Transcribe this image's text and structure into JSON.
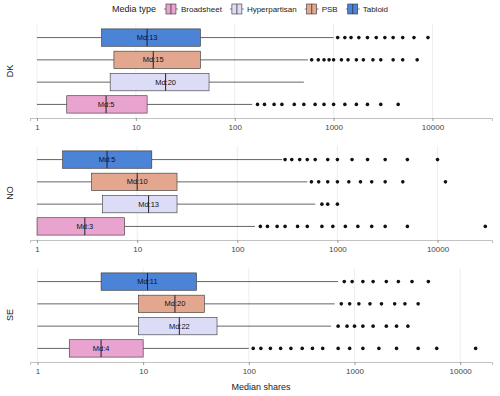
{
  "chart_data": {
    "type": "box",
    "orientation": "horizontal",
    "log": "x",
    "grid": true,
    "legend": "top",
    "legend_title": "Media type",
    "x_label": "Median shares",
    "series": [
      {
        "name": "Broadsheet",
        "color": "#e9a3cf"
      },
      {
        "name": "Hyperpartisan",
        "color": "#dcdcf6"
      },
      {
        "name": "PSB",
        "color": "#e3a68e"
      },
      {
        "name": "Tabloid",
        "color": "#4b83d6"
      }
    ],
    "panels": [
      {
        "title": "DK",
        "xlim": [
          0.85,
          40000
        ],
        "xticks": [
          1,
          10,
          100,
          1000,
          10000
        ],
        "boxes": [
          {
            "whisker_low": 1,
            "q1": 2,
            "median": 5,
            "q3": 13,
            "whisker_high": 150,
            "median_label": "Md:5",
            "outliers": [
              170,
              200,
              250,
              300,
              400,
              500,
              650,
              800,
              1000,
              1300,
              1700,
              2200,
              3000,
              4500
            ]
          },
          {
            "whisker_low": 1,
            "q1": 5.5,
            "median": 20,
            "q3": 55,
            "whisker_high": 500,
            "median_label": "Md:20",
            "outliers": []
          },
          {
            "whisker_low": 1,
            "q1": 6,
            "median": 15,
            "q3": 45,
            "whisker_high": 550,
            "median_label": "Md:15",
            "outliers": [
              600,
              700,
              800,
              900,
              1000,
              1200,
              1400,
              1700,
              2000,
              2500,
              3000,
              4000,
              5000,
              7000
            ]
          },
          {
            "whisker_low": 1,
            "q1": 4.5,
            "median": 13,
            "q3": 45,
            "whisker_high": 1000,
            "median_label": "Md:13",
            "outliers": [
              1100,
              1300,
              1500,
              1800,
              2200,
              2700,
              3300,
              4000,
              5000,
              6500,
              9000
            ]
          }
        ]
      },
      {
        "title": "NO",
        "xlim": [
          0.85,
          35000
        ],
        "xticks": [
          1,
          10,
          100,
          1000,
          10000
        ],
        "boxes": [
          {
            "whisker_low": 1,
            "q1": 1,
            "median": 3,
            "q3": 7.5,
            "whisker_high": 150,
            "median_label": "Md:3",
            "outliers": [
              170,
              200,
              250,
              300,
              400,
              500,
              700,
              900,
              1200,
              1600,
              2200,
              3000,
              5000,
              30000
            ]
          },
          {
            "whisker_low": 1,
            "q1": 4.5,
            "median": 13,
            "q3": 25,
            "whisker_high": 600,
            "median_label": "Md:13",
            "outliers": [
              700,
              800,
              1000
            ]
          },
          {
            "whisker_low": 1,
            "q1": 3.5,
            "median": 10,
            "q3": 25,
            "whisker_high": 500,
            "median_label": "Md:10",
            "outliers": [
              550,
              650,
              800,
              1000,
              1300,
              1700,
              2200,
              3000,
              4500,
              12000
            ]
          },
          {
            "whisker_low": 1,
            "q1": 1.8,
            "median": 5,
            "q3": 14,
            "whisker_high": 280,
            "median_label": "Md:5",
            "outliers": [
              300,
              350,
              420,
              500,
              600,
              800,
              1000,
              1400,
              2000,
              3000,
              5000,
              10000
            ]
          }
        ]
      },
      {
        "title": "SE",
        "xlim": [
          0.85,
          20000
        ],
        "xticks": [
          1,
          10,
          100,
          1000,
          10000
        ],
        "boxes": [
          {
            "whisker_low": 1,
            "q1": 2,
            "median": 4,
            "q3": 10,
            "whisker_high": 100,
            "median_label": "Md:4",
            "outliers": [
              110,
              130,
              160,
              200,
              250,
              320,
              400,
              500,
              700,
              900,
              1200,
              1700,
              2500,
              4000,
              6000,
              14000
            ]
          },
          {
            "whisker_low": 1,
            "q1": 9,
            "median": 22,
            "q3": 50,
            "whisker_high": 600,
            "median_label": "Md:22",
            "outliers": [
              700,
              850,
              1000,
              1200,
              1500,
              2000,
              2500,
              3200
            ]
          },
          {
            "whisker_low": 1,
            "q1": 9,
            "median": 20,
            "q3": 38,
            "whisker_high": 650,
            "median_label": "Md:20",
            "outliers": [
              750,
              900,
              1100,
              1400,
              1800,
              2400,
              3000,
              4000
            ]
          },
          {
            "whisker_low": 1,
            "q1": 4,
            "median": 11,
            "q3": 32,
            "whisker_high": 700,
            "median_label": "Md:11",
            "outliers": [
              800,
              950,
              1200,
              1500,
              2000,
              2600,
              3500,
              5000
            ]
          }
        ]
      }
    ]
  }
}
